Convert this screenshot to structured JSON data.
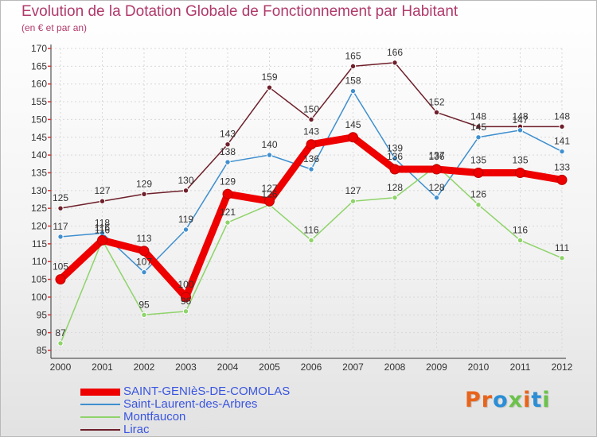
{
  "title": "Evolution de la Dotation Globale de Fonctionnement par Habitant",
  "subtitle": "(en € et par an)",
  "logo": {
    "text": "Proxiti",
    "colors": [
      "#e8641b",
      "#e8641b",
      "#2b8ed6",
      "#6cc24a",
      "#e8641b",
      "#2b8ed6",
      "#6cc24a"
    ]
  },
  "chart_data": {
    "type": "line",
    "x": [
      "2000",
      "2001",
      "2002",
      "2003",
      "2004",
      "2005",
      "2006",
      "2007",
      "2008",
      "2009",
      "2010",
      "2011",
      "2012"
    ],
    "ylim": [
      85,
      170
    ],
    "yticks": [
      85,
      90,
      95,
      100,
      105,
      110,
      115,
      120,
      125,
      130,
      135,
      140,
      145,
      150,
      155,
      160,
      165,
      170
    ],
    "grid": true,
    "legend_position": "bottom-left",
    "series": [
      {
        "name": "Lirac",
        "color": "#6e1f2a",
        "values": [
          125,
          127,
          129,
          130,
          143,
          159,
          150,
          165,
          166,
          152,
          148,
          148,
          148
        ]
      },
      {
        "name": "Saint-Laurent-des-Arbres",
        "color": "#3f8fcf",
        "values": [
          117,
          118,
          107,
          119,
          138,
          140,
          136,
          158,
          139,
          128,
          145,
          147,
          141
        ]
      },
      {
        "name": "Montfaucon",
        "color": "#8fd36a",
        "values": [
          87,
          116,
          95,
          96,
          121,
          126,
          116,
          127,
          128,
          137,
          126,
          116,
          111
        ]
      },
      {
        "name": "SAINT-GENIèS-DE-COMOLAS",
        "color": "#ee0000",
        "values": [
          105,
          116,
          113,
          100,
          129,
          127,
          143,
          145,
          136,
          136,
          135,
          135,
          133
        ]
      }
    ],
    "legend_order": [
      "SAINT-GENIèS-DE-COMOLAS",
      "Saint-Laurent-des-Arbres",
      "Montfaucon",
      "Lirac"
    ],
    "legend_text_color": "#3a55e0"
  }
}
